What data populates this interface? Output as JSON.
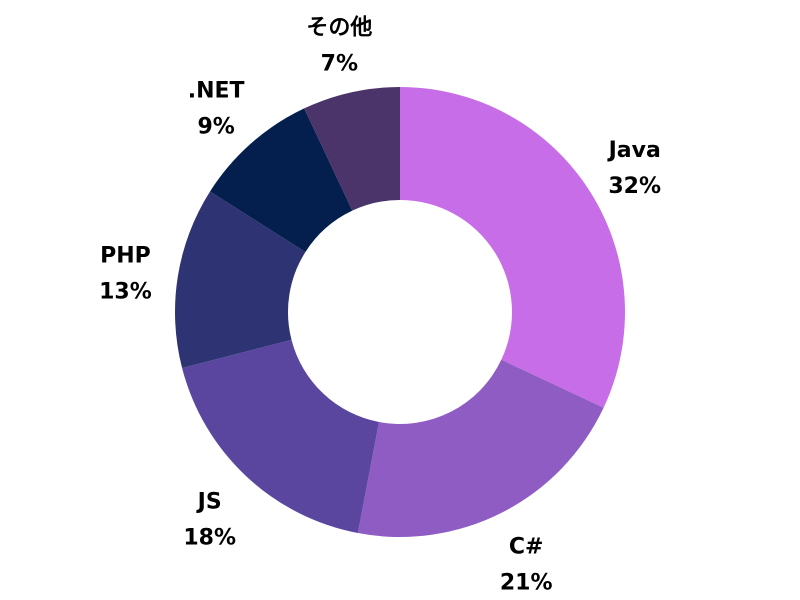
{
  "chart_data": {
    "type": "pie",
    "donut": true,
    "grid": false,
    "legend": "none",
    "slices": [
      {
        "label": "Java",
        "value": 32,
        "value_label": "32%",
        "color": "#c86de8"
      },
      {
        "label": "C#",
        "value": 21,
        "value_label": "21%",
        "color": "#8f5cc4"
      },
      {
        "label": "JS",
        "value": 18,
        "value_label": "18%",
        "color": "#5a469e"
      },
      {
        "label": "PHP",
        "value": 13,
        "value_label": "13%",
        "color": "#2d3373"
      },
      {
        "label": ".NET",
        "value": 9,
        "value_label": "9%",
        "color": "#041e4d"
      },
      {
        "label": "その他",
        "value": 7,
        "value_label": "7%",
        "color": "#4a3469"
      }
    ]
  }
}
